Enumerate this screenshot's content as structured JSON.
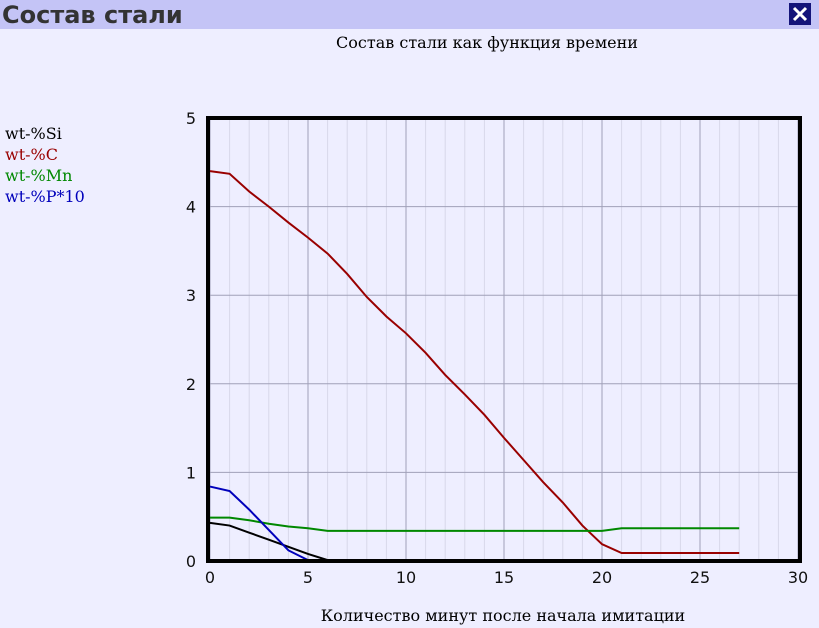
{
  "window": {
    "title": "Состав стали"
  },
  "chart_data": {
    "type": "line",
    "title": "Состав стали как функция времени",
    "x_label": "Количество минут после начала имитации",
    "x": [
      0,
      1,
      2,
      3,
      4,
      5,
      6,
      7,
      8,
      9,
      10,
      11,
      12,
      13,
      14,
      15,
      16,
      17,
      18,
      19,
      20,
      21,
      22,
      23,
      24,
      25,
      26,
      27
    ],
    "series": [
      {
        "name": "wt-%Si",
        "color": "#000000",
        "values": [
          0.43,
          0.4,
          0.32,
          0.24,
          0.16,
          0.08,
          0.01,
          null,
          null,
          null,
          null,
          null,
          null,
          null,
          null,
          null,
          null,
          null,
          null,
          null,
          null,
          null,
          null,
          null,
          null,
          null,
          null,
          null
        ]
      },
      {
        "name": "wt-%C",
        "color": "#990000",
        "values": [
          4.4,
          4.37,
          4.17,
          4.0,
          3.82,
          3.65,
          3.47,
          3.24,
          2.98,
          2.76,
          2.57,
          2.35,
          2.1,
          1.88,
          1.65,
          1.39,
          1.14,
          0.89,
          0.66,
          0.4,
          0.19,
          0.09,
          0.09,
          0.09,
          0.09,
          0.09,
          0.09,
          0.09
        ]
      },
      {
        "name": "wt-%Mn",
        "color": "#008800",
        "values": [
          0.49,
          0.49,
          0.46,
          0.42,
          0.39,
          0.37,
          0.34,
          0.34,
          0.34,
          0.34,
          0.34,
          0.34,
          0.34,
          0.34,
          0.34,
          0.34,
          0.34,
          0.34,
          0.34,
          0.34,
          0.34,
          0.37,
          0.37,
          0.37,
          0.37,
          0.37,
          0.37,
          0.37
        ]
      },
      {
        "name": "wt-%P*10",
        "color": "#0000bb",
        "values": [
          0.84,
          0.79,
          0.58,
          0.35,
          0.12,
          0.01,
          null,
          null,
          null,
          null,
          null,
          null,
          null,
          null,
          null,
          null,
          null,
          null,
          null,
          null,
          null,
          null,
          null,
          null,
          null,
          null,
          null,
          null
        ]
      }
    ],
    "xlim": [
      0,
      30
    ],
    "xticks": [
      0,
      5,
      10,
      15,
      20,
      25,
      30
    ],
    "ylim": [
      0,
      5
    ],
    "yticks": [
      0,
      1,
      2,
      3,
      4,
      5
    ],
    "grid": true
  }
}
